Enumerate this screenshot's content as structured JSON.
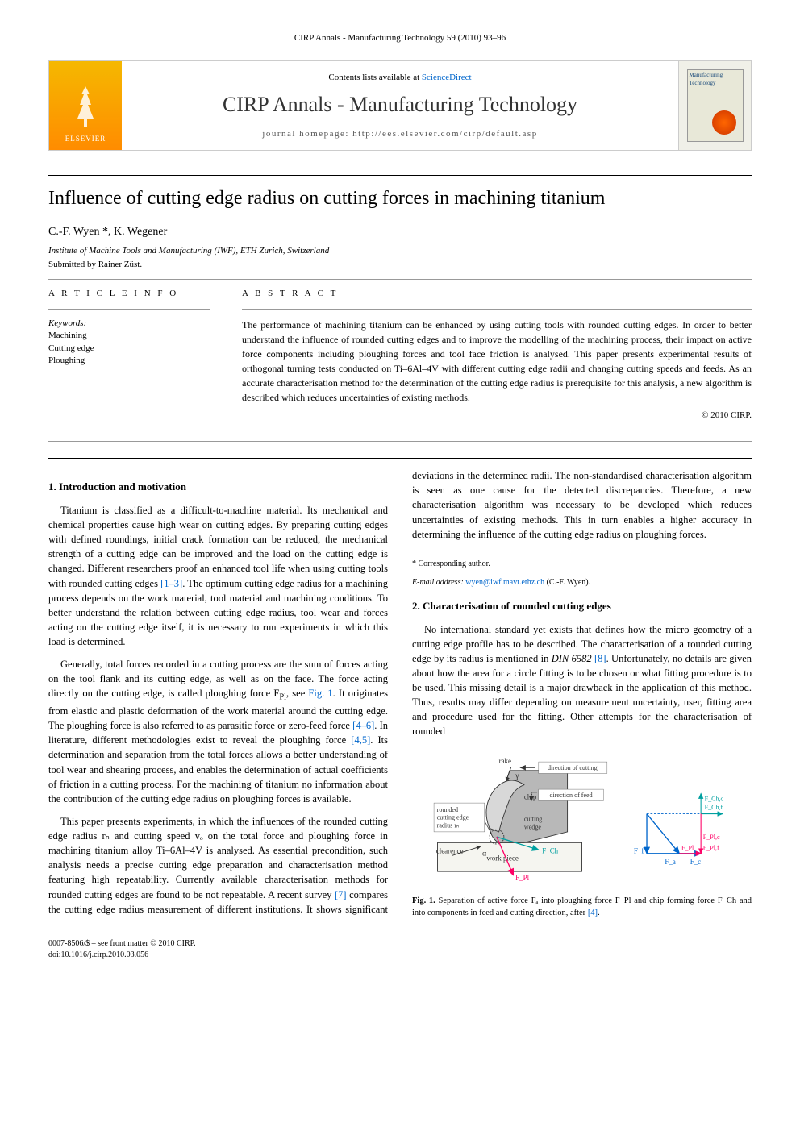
{
  "header": {
    "running_head": "CIRP Annals - Manufacturing Technology 59 (2010) 93–96"
  },
  "banner": {
    "publisher_label": "ELSEVIER",
    "contents_prefix": "Contents lists available at ",
    "contents_link": "ScienceDirect",
    "journal_name": "CIRP Annals - Manufacturing Technology",
    "homepage_label": "journal homepage: http://ees.elsevier.com/cirp/default.asp",
    "cover_title": "Manufacturing Technology"
  },
  "article": {
    "title": "Influence of cutting edge radius on cutting forces in machining titanium",
    "authors": "C.-F. Wyen *, K. Wegener",
    "affiliation": "Institute of Machine Tools and Manufacturing (IWF), ETH Zurich, Switzerland",
    "submitted": "Submitted by Rainer Züst."
  },
  "info": {
    "info_label": "A R T I C L E   I N F O",
    "keywords_label": "Keywords:",
    "keywords": [
      "Machining",
      "Cutting edge",
      "Ploughing"
    ]
  },
  "abstract": {
    "label": "A B S T R A C T",
    "text": "The performance of machining titanium can be enhanced by using cutting tools with rounded cutting edges. In order to better understand the influence of rounded cutting edges and to improve the modelling of the machining process, their impact on active force components including ploughing forces and tool face friction is analysed. This paper presents experimental results of orthogonal turning tests conducted on Ti–6Al–4V with different cutting edge radii and changing cutting speeds and feeds. As an accurate characterisation method for the determination of the cutting edge radius is prerequisite for this analysis, a new algorithm is described which reduces uncertainties of existing methods.",
    "copyright": "© 2010 CIRP."
  },
  "sections": {
    "s1_title": "1. Introduction and motivation",
    "s1_p1": "Titanium is classified as a difficult-to-machine material. Its mechanical and chemical properties cause high wear on cutting edges. By preparing cutting edges with defined roundings, initial crack formation can be reduced, the mechanical strength of a cutting edge can be improved and the load on the cutting edge is changed. Different researchers proof an enhanced tool life when using cutting tools with rounded cutting edges ",
    "s1_p1_ref": "[1–3]",
    "s1_p1_cont": ". The optimum cutting edge radius for a machining process depends on the work material, tool material and machining conditions. To better understand the relation between cutting edge radius, tool wear and forces acting on the cutting edge itself, it is necessary to run experiments in which this load is determined.",
    "s1_p2a": "Generally, total forces recorded in a cutting process are the sum of forces acting on the tool flank and its cutting edge, as well as on the face. The force acting directly on the cutting edge, is called ploughing force F",
    "s1_p2_sub1": "Pl",
    "s1_p2b": ", see ",
    "s1_p2_figref": "Fig. 1",
    "s1_p2c": ". It originates from elastic and plastic deformation of the work material around the cutting edge. The ploughing force is also referred to as parasitic force or zero-feed force ",
    "s1_p2_ref1": "[4–6]",
    "s1_p2d": ". In literature, different methodologies exist to reveal the ploughing force ",
    "s1_p2_ref2": "[4,5]",
    "s1_p2e": ". Its determination and separation from the total forces allows a better understanding of tool wear and shearing process, and enables the determination of actual coefficients of friction in a cutting process. For the machining of titanium no information about the contribution of the cutting edge radius on ploughing forces is available.",
    "s1_p3": "This paper presents experiments, in which the influences of the rounded cutting edge radius rₙ and cutting speed vₒ on the total force and ploughing force in machining titanium alloy Ti–6Al–4V is analysed. As essential precondition, such analysis needs a precise cutting edge preparation and characterisation method featuring high repeatability. Currently available characterisation methods for rounded cutting edges are found to be not repeatable. A recent survey ",
    "s1_p3_ref": "[7]",
    "s1_p3_cont": " compares the cutting edge radius measurement of different institutions. It shows significant deviations in the determined radii. The non-standardised characterisation algorithm is seen as one cause for the detected discrepancies. Therefore, a new characterisation algorithm was necessary to be developed which reduces uncertainties of existing methods. This in turn enables a higher accuracy in determining the influence of the cutting edge radius on ploughing forces.",
    "s2_title": "2. Characterisation of rounded cutting edges",
    "s2_p1a": "No international standard yet exists that defines how the micro geometry of a cutting edge profile has to be described. The characterisation of a rounded cutting edge by its radius is mentioned in ",
    "s2_p1_din": "DIN 6582",
    "s2_p1b": " ",
    "s2_p1_ref": "[8]",
    "s2_p1c": ". Unfortunately, no details are given about how the area for a circle fitting is to be chosen or what fitting procedure is to be used. This missing detail is a major drawback in the application of this method. Thus, results may differ depending on measurement uncertainty, user, fitting area and procedure used for the fitting. Other attempts for the characterisation of rounded"
  },
  "figure1": {
    "labels": {
      "rake": "rake",
      "gamma": "γ",
      "dir_cut": "direction of cutting",
      "rounded": "rounded",
      "cutting_edge": "cutting edge",
      "radius": "radius rₙ",
      "chip": "chip",
      "dir_feed": "direction of feed",
      "cutting_wedge": "cutting wedge",
      "clearance": "clearence",
      "alpha": "α",
      "workpiece": "work piece",
      "Fch": "F_Ch",
      "Fpl": "F_Pl",
      "Ff": "F_f",
      "Fa": "F_a",
      "Fc": "F_c",
      "Fchc": "F_Ch,c",
      "Fchf": "F_Ch,f",
      "Fplc": "F_Pl,c",
      "Fplf": "F_Pl,f"
    },
    "colors": {
      "wedge_fill": "#b8b8b8",
      "chip_fill": "#d8d8d8",
      "workpiece_fill": "#f5f5f0",
      "border": "#333333",
      "arrow_fch": "#00a0a0",
      "arrow_fpl": "#ff0066",
      "arrow_ff": "#0066cc",
      "arrow_fa": "#0066cc",
      "arrow_fc": "#0066cc",
      "arrow_dir": "#333333",
      "box_bg": "#ffffff",
      "box_border": "#666666"
    },
    "caption_prefix": "Fig. 1.",
    "caption": " Separation of active force Fₐ into ploughing force F_Pl and chip forming force F_Ch and into components in feed and cutting direction, after ",
    "caption_ref": "[4]",
    "caption_suffix": "."
  },
  "footnote": {
    "corr_label": "* Corresponding author.",
    "email_label": "E-mail address: ",
    "email": "wyen@iwf.mavt.ethz.ch",
    "email_suffix": " (C.-F. Wyen)."
  },
  "footer": {
    "issn": "0007-8506/$ – see front matter © 2010 CIRP.",
    "doi": "doi:10.1016/j.cirp.2010.03.056"
  }
}
